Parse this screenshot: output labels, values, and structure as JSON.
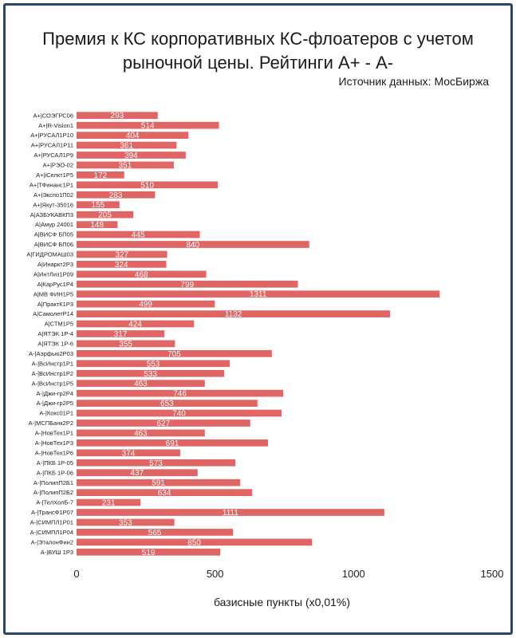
{
  "chart_data": {
    "type": "bar",
    "orientation": "horizontal",
    "title_lines": [
      "Премия к КС корпоративных КС-флоатеров с учетом",
      "рыночной цены. Рейтинги А+ - А-"
    ],
    "source": "Источник данных: МосБиржа",
    "xlabel": "базисные пункты (х0,01%)",
    "xlim": [
      0,
      1500
    ],
    "xticks": [
      0,
      500,
      1000,
      1500
    ],
    "grid": false,
    "bar_color": "#e06666",
    "categories": [
      "A+|СОЭГРС06",
      "A+|R-Vision1",
      "A+|РУСАЛ1Р10",
      "A+|РУСАЛ1Р11",
      "A+|РУСАЛ1Р9",
      "A+|РЭО-02",
      "A+|iСелкт1Р5",
      "A+|ТФинанс1Р1",
      "A+|Экспо1П02",
      "A+|Якут-35016",
      "A|АЗБУКАВКП3",
      "A|Амур 24001",
      "A|ВИСФ БП05",
      "A|ВИСФ БП06",
      "A|ГИДРОМАШ03",
      "A|Инаркт2Р3",
      "A|ИнтЛиз1Р09",
      "A|КарРус1Р4",
      "A|МВ ФИН1Р5",
      "A|ПрактК1Р3",
      "A|СамолетР14",
      "A|СТМ1Р5",
      "A|ЯТЭК 1Р-4",
      "A|ЯТЭК 1Р-6",
      "A-|Аэрфью2Р03",
      "A-|ВсИнстр1Р1",
      "A-|ВсИнстр1Р2",
      "A-|ВсИнстр1Р5",
      "A-|Джи-гр2Р4",
      "A-|Джи-гр2Р5",
      "A-|Кокс01Р1",
      "A-|МСПБанк2Р2",
      "A-|НовТех1Р1",
      "A-|НовТех1Р3",
      "A-|НовТех1Р6",
      "A-|ПКБ 1Р-05",
      "A-|ПКБ 1Р-06",
      "A-|ПолипП2Б1",
      "A-|ПолипП2Б2",
      "A-|ТелХолБ-7",
      "A-|ТрансФ1Р07",
      "A-|СИМПЛ1Р01",
      "A-|СИМПЛ1Р04",
      "A-|ЭталонФин2",
      "A-|ВУШ 1Р3"
    ],
    "values": [
      293,
      514,
      404,
      361,
      394,
      351,
      172,
      510,
      283,
      155,
      205,
      148,
      445,
      840,
      327,
      324,
      468,
      799,
      1311,
      499,
      1132,
      424,
      317,
      355,
      705,
      553,
      533,
      463,
      746,
      653,
      740,
      627,
      463,
      691,
      374,
      573,
      437,
      591,
      634,
      231,
      1111,
      353,
      565,
      850,
      519
    ]
  }
}
